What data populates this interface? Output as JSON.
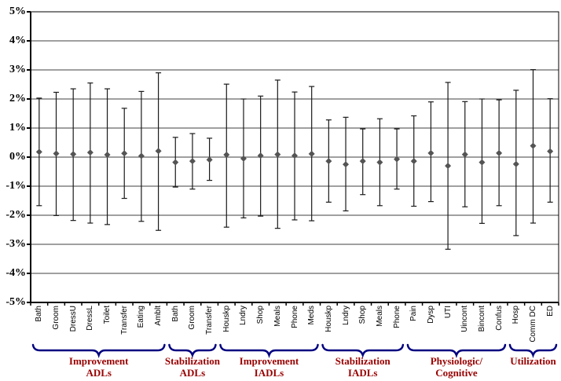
{
  "chart_data": {
    "type": "scatter",
    "subtype": "point-estimates-with-95pct-confidence-interval-error-bars",
    "title": "",
    "xlabel": "",
    "ylabel": "",
    "ylim": [
      -5,
      5
    ],
    "ytick_step": 1,
    "ytick_labels": [
      "5%",
      "4%",
      "3%",
      "2%",
      "1%",
      "0%",
      "-1%",
      "-2%",
      "-3%",
      "-4%",
      "-5%"
    ],
    "grid": "horizontal",
    "legend_position": "none",
    "marker": {
      "shape": "diamond",
      "color": "#545454",
      "size": 8
    },
    "colors": {
      "errorbar": "#1a1a1a",
      "gridline": "#404040",
      "axis": "#000000",
      "brace": "#000080",
      "group_label": "#990000",
      "background": "#ffffff"
    },
    "points": [
      {
        "label": "Bath",
        "value": 0.18,
        "upper": 2.03,
        "lower": -1.67
      },
      {
        "label": "Groom",
        "value": 0.12,
        "upper": 2.23,
        "lower": -2.01
      },
      {
        "label": "DressU",
        "value": 0.1,
        "upper": 2.35,
        "lower": -2.18
      },
      {
        "label": "DressL",
        "value": 0.16,
        "upper": 2.55,
        "lower": -2.27
      },
      {
        "label": "Toilet",
        "value": 0.08,
        "upper": 2.35,
        "lower": -2.32
      },
      {
        "label": "Transfer",
        "value": 0.13,
        "upper": 1.68,
        "lower": -1.42
      },
      {
        "label": "Eating",
        "value": 0.04,
        "upper": 2.26,
        "lower": -2.21
      },
      {
        "label": "Amblt",
        "value": 0.21,
        "upper": 2.9,
        "lower": -2.52
      },
      {
        "label": "Bath",
        "value": -0.18,
        "upper": 0.68,
        "lower": -1.03
      },
      {
        "label": "Groom",
        "value": -0.14,
        "upper": 0.81,
        "lower": -1.1
      },
      {
        "label": "Transfer",
        "value": -0.09,
        "upper": 0.65,
        "lower": -0.8
      },
      {
        "label": "Houskp",
        "value": 0.08,
        "upper": 2.51,
        "lower": -2.41
      },
      {
        "label": "Lndry",
        "value": -0.05,
        "upper": 2.0,
        "lower": -2.09
      },
      {
        "label": "Shop",
        "value": 0.05,
        "upper": 2.1,
        "lower": -2.03
      },
      {
        "label": "Meals",
        "value": 0.09,
        "upper": 2.65,
        "lower": -2.45
      },
      {
        "label": "Phone",
        "value": 0.05,
        "upper": 2.24,
        "lower": -2.16
      },
      {
        "label": "Meds",
        "value": 0.11,
        "upper": 2.43,
        "lower": -2.19
      },
      {
        "label": "Houskp",
        "value": -0.14,
        "upper": 1.28,
        "lower": -1.55
      },
      {
        "label": "Lndry",
        "value": -0.25,
        "upper": 1.37,
        "lower": -1.85
      },
      {
        "label": "Shop",
        "value": -0.14,
        "upper": 0.97,
        "lower": -1.29
      },
      {
        "label": "Meals",
        "value": -0.18,
        "upper": 1.32,
        "lower": -1.67
      },
      {
        "label": "Phone",
        "value": -0.07,
        "upper": 0.97,
        "lower": -1.1
      },
      {
        "label": "Pain",
        "value": -0.14,
        "upper": 1.42,
        "lower": -1.69
      },
      {
        "label": "Dysp",
        "value": 0.14,
        "upper": 1.9,
        "lower": -1.53
      },
      {
        "label": "UTI",
        "value": -0.3,
        "upper": 2.57,
        "lower": -3.17
      },
      {
        "label": "Uincont",
        "value": 0.09,
        "upper": 1.91,
        "lower": -1.71
      },
      {
        "label": "Bincont",
        "value": -0.18,
        "upper": 2.0,
        "lower": -2.28
      },
      {
        "label": "Confus",
        "value": 0.14,
        "upper": 1.97,
        "lower": -1.67
      },
      {
        "label": "Hosp",
        "value": -0.24,
        "upper": 2.3,
        "lower": -2.7
      },
      {
        "label": "Comm DC",
        "value": 0.39,
        "upper": 3.01,
        "lower": -2.27
      },
      {
        "label": "ED",
        "value": 0.2,
        "upper": 2.01,
        "lower": -1.55
      }
    ],
    "groups": [
      {
        "line1": "Improvement",
        "line2": "ADLs",
        "start": 0,
        "end": 7
      },
      {
        "line1": "Stabilization",
        "line2": "ADLs",
        "start": 8,
        "end": 10
      },
      {
        "line1": "Improvement",
        "line2": "IADLs",
        "start": 11,
        "end": 16
      },
      {
        "line1": "Stabilization",
        "line2": "IADLs",
        "start": 17,
        "end": 21
      },
      {
        "line1": "Physiologic/",
        "line2": "Cognitive",
        "start": 22,
        "end": 27
      },
      {
        "line1": "Utilization",
        "line2": "",
        "start": 28,
        "end": 30
      }
    ]
  }
}
